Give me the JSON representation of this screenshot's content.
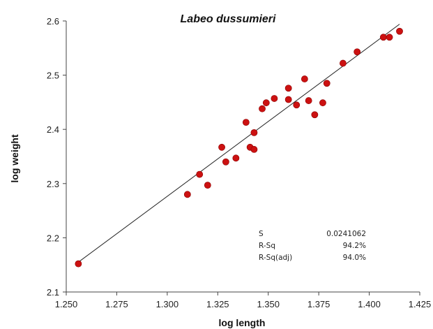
{
  "chart_data": {
    "type": "scatter",
    "title": "Labeo dussumieri",
    "xlabel": "log length",
    "ylabel": "log weight",
    "xlim": [
      1.25,
      1.425
    ],
    "ylim": [
      2.1,
      2.6
    ],
    "x_ticks": [
      "1.250",
      "1.275",
      "1.300",
      "1.325",
      "1.350",
      "1.375",
      "1.400",
      "1.425"
    ],
    "y_ticks": [
      "2.1",
      "2.2",
      "2.3",
      "2.4",
      "2.5",
      "2.6"
    ],
    "grid": false,
    "marker_color": "#cc1111",
    "line_color": "#222222",
    "points": [
      {
        "x": 1.256,
        "y": 2.152
      },
      {
        "x": 1.31,
        "y": 2.28
      },
      {
        "x": 1.316,
        "y": 2.317
      },
      {
        "x": 1.32,
        "y": 2.297
      },
      {
        "x": 1.327,
        "y": 2.367
      },
      {
        "x": 1.329,
        "y": 2.34
      },
      {
        "x": 1.334,
        "y": 2.347
      },
      {
        "x": 1.339,
        "y": 2.413
      },
      {
        "x": 1.341,
        "y": 2.367
      },
      {
        "x": 1.343,
        "y": 2.394
      },
      {
        "x": 1.343,
        "y": 2.363
      },
      {
        "x": 1.347,
        "y": 2.438
      },
      {
        "x": 1.349,
        "y": 2.449
      },
      {
        "x": 1.353,
        "y": 2.457
      },
      {
        "x": 1.36,
        "y": 2.476
      },
      {
        "x": 1.36,
        "y": 2.455
      },
      {
        "x": 1.364,
        "y": 2.445
      },
      {
        "x": 1.368,
        "y": 2.493
      },
      {
        "x": 1.37,
        "y": 2.453
      },
      {
        "x": 1.373,
        "y": 2.427
      },
      {
        "x": 1.377,
        "y": 2.449
      },
      {
        "x": 1.379,
        "y": 2.485
      },
      {
        "x": 1.387,
        "y": 2.522
      },
      {
        "x": 1.394,
        "y": 2.543
      },
      {
        "x": 1.407,
        "y": 2.57
      },
      {
        "x": 1.41,
        "y": 2.57
      },
      {
        "x": 1.415,
        "y": 2.581
      }
    ],
    "fit_line": {
      "x": [
        1.256,
        1.415
      ],
      "y": [
        2.155,
        2.594
      ]
    },
    "stats": [
      {
        "label": "S",
        "value": "0.0241062"
      },
      {
        "label": "R-Sq",
        "value": "94.2%"
      },
      {
        "label": "R-Sq(adj)",
        "value": "94.0%"
      }
    ]
  }
}
